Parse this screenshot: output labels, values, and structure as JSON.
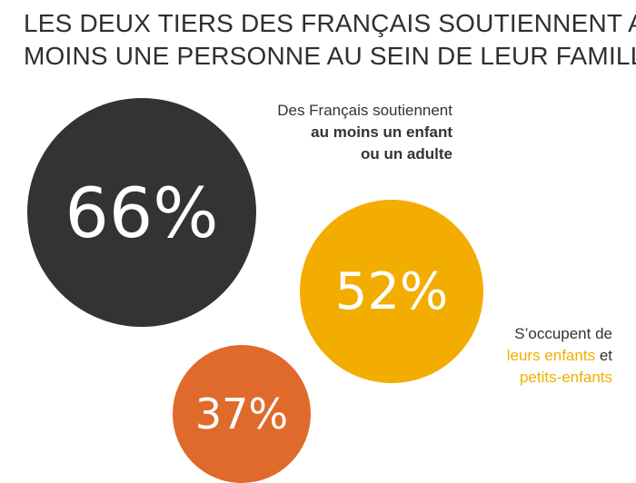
{
  "title": {
    "line1": "LES DEUX TIERS DES FRANÇAIS SOUTIENNENT AU",
    "line2": "MOINS UNE PERSONNE AU SEIN DE LEUR FAMILLE"
  },
  "colors": {
    "dark": "#333333",
    "yellow": "#f2ad00",
    "orange": "#e06a2c"
  },
  "chart_data": {
    "type": "bubble",
    "title": "LES DEUX TIERS DES FRANÇAIS SOUTIENNENT AU MOINS UNE PERSONNE AU SEIN DE LEUR FAMILLE",
    "series": [
      {
        "value": 66,
        "label": "66%",
        "color": "#333333",
        "caption": "Des Français soutiennent au moins un enfant ou un adulte"
      },
      {
        "value": 52,
        "label": "52%",
        "color": "#f2ad00",
        "caption": "S'occupent de leurs enfants et petits-enfants"
      },
      {
        "value": 37,
        "label": "37%",
        "color": "#e06a2c",
        "caption": ""
      }
    ]
  },
  "captions": {
    "c66": {
      "plain": "Des Français soutiennent",
      "bold1": "au moins un enfant",
      "bold2": "ou un adulte"
    },
    "c52": {
      "line1": "S’occupent de",
      "accent1": "leurs enfants",
      "and": "et",
      "accent2": "petits-enfants"
    }
  }
}
